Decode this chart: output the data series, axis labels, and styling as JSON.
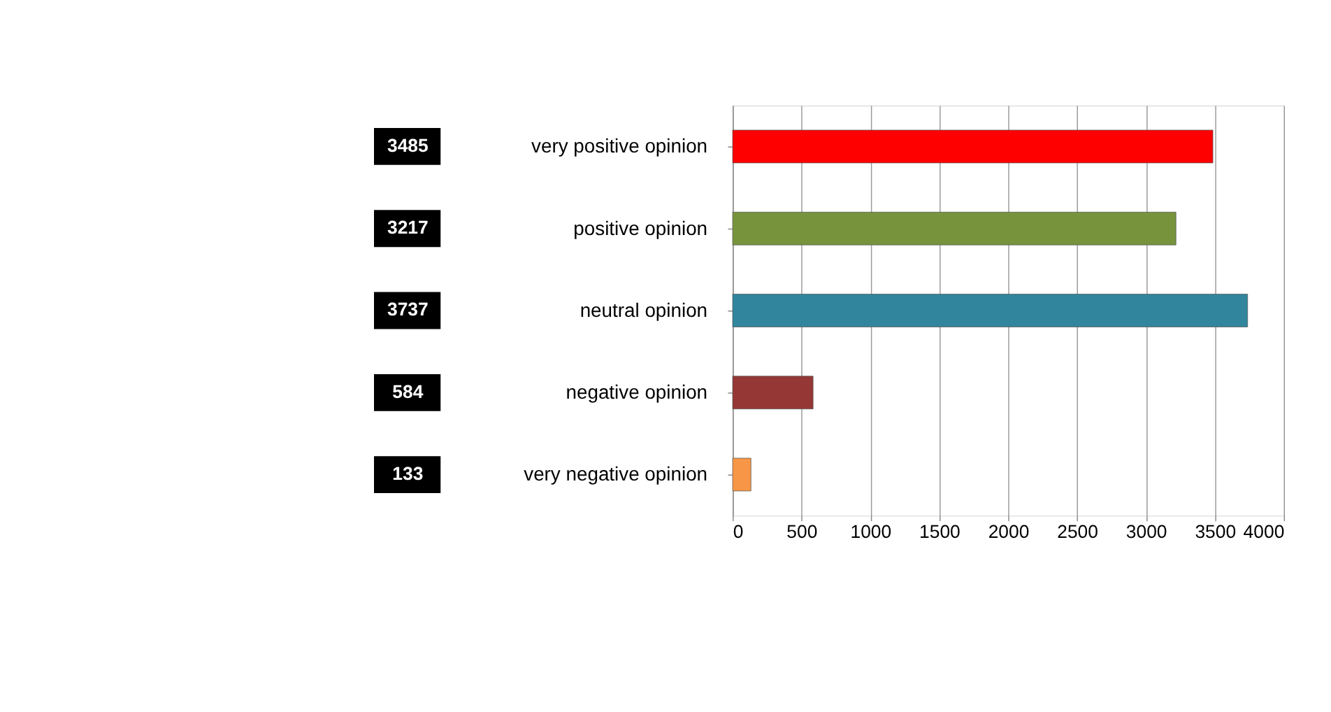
{
  "chart_data": {
    "type": "bar",
    "orientation": "horizontal",
    "categories": [
      "very positive opinion",
      "positive opinion",
      "neutral opinion",
      "negative opinion",
      "very negative opinion"
    ],
    "values": [
      3485,
      3217,
      3737,
      584,
      133
    ],
    "colors": [
      "#ff0000",
      "#77933c",
      "#31859c",
      "#953735",
      "#f79646"
    ],
    "xlim": [
      0,
      4000
    ],
    "xticks": [
      0,
      500,
      1000,
      1500,
      2000,
      2500,
      3000,
      3500,
      4000
    ],
    "grid": "x",
    "data_labels": true
  }
}
